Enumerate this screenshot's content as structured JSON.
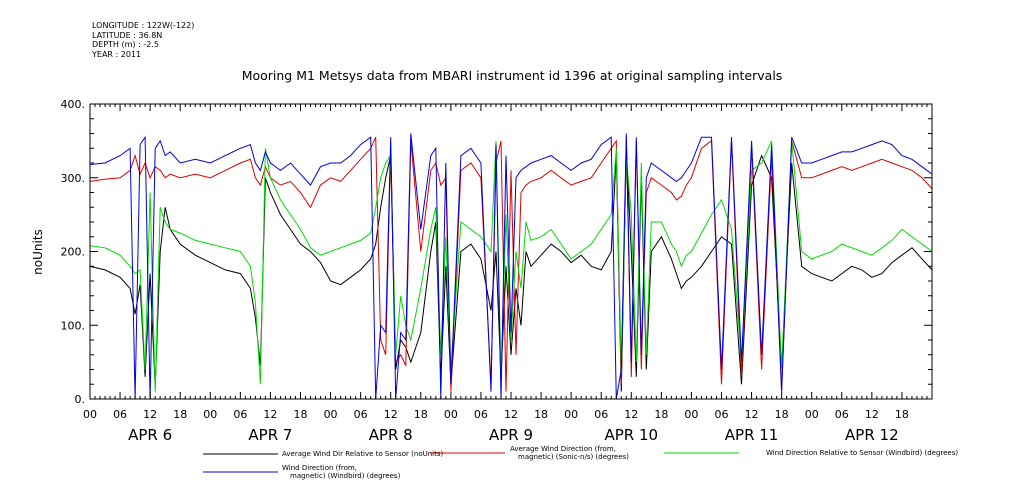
{
  "header": {
    "lines": [
      "LONGITUDE : 122W(-122)",
      "LATITUDE : 36.8N",
      "DEPTH (m) : -2.5",
      "YEAR : 2011"
    ]
  },
  "chart_data": {
    "type": "line",
    "title": "Mooring M1 Metsys data from MBARI instrument id 1396 at original sampling intervals",
    "xlabel": "",
    "ylabel": "noUnits",
    "ylim": [
      0,
      400
    ],
    "y_ticks": [
      "0.",
      "100.",
      "200.",
      "300.",
      "400."
    ],
    "x_hour_ticks": [
      "00",
      "06",
      "12",
      "18",
      "00",
      "06",
      "12",
      "18",
      "00",
      "06",
      "12",
      "18",
      "00",
      "06",
      "12",
      "18",
      "00",
      "06",
      "12",
      "18",
      "00",
      "06",
      "12",
      "18",
      "00",
      "06",
      "12",
      "18"
    ],
    "x_day_labels": [
      "APR  6",
      "APR  7",
      "APR  8",
      "APR  9",
      "APR 10",
      "APR 11",
      "APR 12"
    ],
    "xlim_hours": [
      0,
      168
    ],
    "grid": false,
    "legend": "bottom",
    "series": [
      {
        "name": "Average Wind Dir Relative to Sensor (noUnits)",
        "color": "#000000",
        "x": [
          0,
          3,
          6,
          8,
          9,
          10,
          11,
          12,
          13,
          14,
          15,
          16,
          18,
          21,
          24,
          27,
          30,
          32,
          33,
          34,
          35,
          36,
          38,
          40,
          42,
          44,
          46,
          48,
          50,
          52,
          54,
          56,
          57,
          58,
          59,
          60,
          61,
          62,
          63,
          64,
          66,
          68,
          69,
          70,
          71,
          72,
          74,
          76,
          78,
          80,
          81,
          82,
          83,
          84,
          85,
          86,
          87,
          88,
          90,
          92,
          94,
          96,
          98,
          100,
          102,
          104,
          105,
          106,
          107,
          108,
          109,
          110,
          111,
          112,
          114,
          116,
          117,
          118,
          119,
          120,
          122,
          124,
          126,
          128,
          130,
          132,
          134,
          136,
          138,
          140,
          142,
          144,
          146,
          148,
          150,
          152,
          154,
          156,
          158,
          160,
          162,
          164,
          166,
          168
        ],
        "y": [
          180,
          175,
          165,
          150,
          115,
          155,
          30,
          170,
          15,
          200,
          260,
          230,
          210,
          195,
          185,
          175,
          170,
          150,
          110,
          45,
          300,
          280,
          250,
          230,
          210,
          200,
          185,
          160,
          155,
          165,
          175,
          190,
          210,
          260,
          300,
          330,
          40,
          80,
          70,
          50,
          90,
          200,
          240,
          30,
          180,
          20,
          200,
          210,
          190,
          120,
          200,
          30,
          180,
          60,
          150,
          100,
          200,
          180,
          195,
          210,
          200,
          185,
          195,
          180,
          175,
          200,
          330,
          10,
          340,
          200,
          30,
          300,
          40,
          200,
          220,
          190,
          170,
          150,
          160,
          165,
          180,
          200,
          220,
          210,
          20,
          290,
          330,
          300,
          40,
          320,
          180,
          170,
          165,
          160,
          170,
          180,
          175,
          165,
          170,
          185,
          195,
          205,
          190,
          175
        ]
      },
      {
        "name": "Average Wind Direction (from, magnetic) (Sonic-n/s) (degrees)",
        "color": "#dd0000",
        "x": [
          0,
          3,
          6,
          8,
          9,
          10,
          11,
          12,
          13,
          14,
          15,
          16,
          18,
          21,
          24,
          27,
          30,
          32,
          33,
          34,
          35,
          36,
          38,
          40,
          42,
          44,
          46,
          48,
          50,
          52,
          54,
          56,
          57,
          58,
          59,
          60,
          61,
          62,
          63,
          64,
          66,
          68,
          69,
          70,
          71,
          72,
          74,
          76,
          78,
          80,
          81,
          82,
          83,
          84,
          85,
          86,
          87,
          88,
          90,
          92,
          94,
          96,
          98,
          100,
          102,
          104,
          105,
          106,
          107,
          108,
          109,
          110,
          111,
          112,
          114,
          116,
          117,
          118,
          119,
          120,
          122,
          124,
          126,
          128,
          130,
          132,
          134,
          136,
          138,
          140,
          142,
          144,
          146,
          148,
          150,
          152,
          154,
          156,
          158,
          160,
          162,
          164,
          166,
          168
        ],
        "y": [
          295,
          298,
          300,
          310,
          330,
          305,
          320,
          300,
          315,
          310,
          300,
          305,
          300,
          305,
          300,
          310,
          320,
          325,
          300,
          290,
          315,
          300,
          290,
          295,
          280,
          260,
          290,
          300,
          295,
          310,
          325,
          340,
          355,
          80,
          60,
          340,
          50,
          60,
          45,
          350,
          200,
          310,
          320,
          290,
          300,
          10,
          310,
          320,
          300,
          20,
          320,
          350,
          10,
          310,
          60,
          280,
          290,
          295,
          300,
          310,
          300,
          290,
          295,
          300,
          320,
          340,
          350,
          20,
          355,
          30,
          350,
          40,
          280,
          300,
          290,
          280,
          270,
          275,
          290,
          300,
          340,
          350,
          20,
          350,
          30,
          340,
          40,
          330,
          10,
          350,
          300,
          300,
          305,
          310,
          315,
          310,
          315,
          320,
          325,
          320,
          315,
          310,
          300,
          285
        ]
      },
      {
        "name": "Wind Direction Relative to Sensor (Windbird) (degrees)",
        "color": "#00dd00",
        "x": [
          0,
          3,
          6,
          8,
          9,
          10,
          11,
          12,
          13,
          14,
          15,
          16,
          18,
          21,
          24,
          27,
          30,
          32,
          33,
          34,
          35,
          36,
          38,
          40,
          42,
          44,
          46,
          48,
          50,
          52,
          54,
          56,
          57,
          58,
          59,
          60,
          61,
          62,
          63,
          64,
          66,
          68,
          69,
          70,
          71,
          72,
          74,
          76,
          78,
          80,
          81,
          82,
          83,
          84,
          85,
          86,
          87,
          88,
          90,
          92,
          94,
          96,
          98,
          100,
          102,
          104,
          105,
          106,
          107,
          108,
          109,
          110,
          111,
          112,
          114,
          116,
          117,
          118,
          119,
          120,
          122,
          124,
          126,
          128,
          130,
          132,
          134,
          136,
          138,
          140,
          142,
          144,
          146,
          148,
          150,
          152,
          154,
          156,
          158,
          160,
          162,
          164,
          166,
          168
        ],
        "y": [
          208,
          205,
          195,
          180,
          170,
          175,
          40,
          280,
          10,
          260,
          240,
          230,
          225,
          215,
          210,
          205,
          200,
          180,
          130,
          20,
          340,
          300,
          270,
          250,
          230,
          205,
          195,
          200,
          205,
          210,
          215,
          225,
          260,
          300,
          320,
          330,
          60,
          140,
          100,
          80,
          150,
          230,
          260,
          60,
          220,
          40,
          240,
          230,
          220,
          200,
          350,
          30,
          250,
          80,
          200,
          150,
          240,
          215,
          220,
          230,
          210,
          190,
          200,
          210,
          230,
          250,
          340,
          40,
          330,
          250,
          50,
          320,
          60,
          240,
          240,
          210,
          200,
          180,
          195,
          200,
          225,
          250,
          270,
          230,
          50,
          310,
          320,
          350,
          40,
          350,
          200,
          190,
          195,
          200,
          210,
          205,
          200,
          195,
          205,
          215,
          230,
          220,
          210,
          200
        ]
      },
      {
        "name": "Wind Direction (from, magnetic) (Windbird) (degrees)",
        "color": "#0000dd",
        "x": [
          0,
          3,
          6,
          8,
          9,
          10,
          11,
          12,
          13,
          14,
          15,
          16,
          18,
          21,
          24,
          27,
          30,
          32,
          33,
          34,
          35,
          36,
          38,
          40,
          42,
          44,
          46,
          48,
          50,
          52,
          54,
          56,
          57,
          58,
          59,
          60,
          61,
          62,
          63,
          64,
          66,
          68,
          69,
          70,
          71,
          72,
          74,
          76,
          78,
          80,
          81,
          82,
          83,
          84,
          85,
          86,
          87,
          88,
          90,
          92,
          94,
          96,
          98,
          100,
          102,
          104,
          105,
          106,
          107,
          108,
          109,
          110,
          111,
          112,
          114,
          116,
          117,
          118,
          119,
          120,
          122,
          124,
          126,
          128,
          130,
          132,
          134,
          136,
          138,
          140,
          142,
          144,
          146,
          148,
          150,
          152,
          154,
          156,
          158,
          160,
          162,
          164,
          166,
          168
        ],
        "y": [
          318,
          320,
          330,
          340,
          0,
          345,
          355,
          0,
          340,
          350,
          330,
          335,
          320,
          325,
          320,
          330,
          340,
          345,
          320,
          310,
          335,
          320,
          310,
          320,
          305,
          290,
          315,
          320,
          320,
          330,
          345,
          355,
          0,
          100,
          90,
          355,
          0,
          90,
          80,
          360,
          230,
          330,
          340,
          0,
          320,
          20,
          330,
          340,
          320,
          10,
          345,
          0,
          330,
          90,
          300,
          310,
          315,
          320,
          325,
          330,
          320,
          310,
          320,
          325,
          345,
          355,
          0,
          40,
          360,
          50,
          355,
          60,
          300,
          320,
          310,
          300,
          295,
          300,
          310,
          320,
          355,
          355,
          40,
          355,
          50,
          350,
          60,
          345,
          10,
          355,
          320,
          320,
          325,
          330,
          335,
          335,
          340,
          345,
          350,
          345,
          330,
          325,
          315,
          305
        ]
      }
    ]
  }
}
